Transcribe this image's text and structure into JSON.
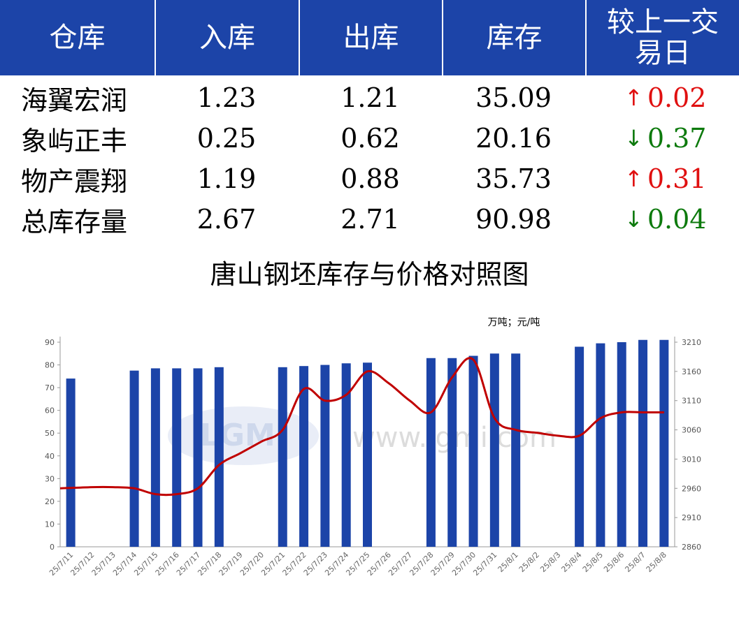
{
  "table": {
    "headers": [
      "仓库",
      "入库",
      "出库",
      "库存",
      "较上一交\n易日"
    ],
    "rows": [
      {
        "name": "海翼宏润",
        "in": "1.23",
        "out": "1.21",
        "stock": "35.09",
        "change": "0.02",
        "direction": "up"
      },
      {
        "name": "象屿正丰",
        "in": "0.25",
        "out": "0.62",
        "stock": "20.16",
        "change": "0.37",
        "direction": "down"
      },
      {
        "name": "物产震翔",
        "in": "1.19",
        "out": "0.88",
        "stock": "35.73",
        "change": "0.31",
        "direction": "up"
      },
      {
        "name": "总库存量",
        "in": "2.67",
        "out": "2.71",
        "stock": "90.98",
        "change": "0.04",
        "direction": "down"
      }
    ],
    "header_color": "#1c44a8",
    "up_color": "#e01010",
    "down_color": "#0d7a0d"
  },
  "watermark": {
    "logo": "LGMI",
    "url": "www.lgmi.com"
  },
  "chart_data": {
    "type": "bar",
    "title": "唐山钢坯库存与价格对照图",
    "unit_label": "万吨；元/吨",
    "categories": [
      "25/7/11",
      "25/7/12",
      "25/7/13",
      "25/7/14",
      "25/7/15",
      "25/7/16",
      "25/7/17",
      "25/7/18",
      "25/7/19",
      "25/7/20",
      "25/7/21",
      "25/7/22",
      "25/7/23",
      "25/7/24",
      "25/7/25",
      "25/7/26",
      "25/7/27",
      "25/7/28",
      "25/7/29",
      "25/7/30",
      "25/7/31",
      "25/8/1",
      "25/8/2",
      "25/8/3",
      "25/8/4",
      "25/8/5",
      "25/8/6",
      "25/8/7",
      "25/8/8"
    ],
    "series": [
      {
        "kind": "bar",
        "axis": "left",
        "color": "#1c44a8",
        "values": [
          74,
          null,
          null,
          77.5,
          78.5,
          78.5,
          78.5,
          79,
          null,
          null,
          79,
          79.5,
          80,
          80.7,
          81,
          null,
          null,
          83,
          83,
          84,
          85,
          85,
          null,
          null,
          88,
          89.5,
          90,
          91,
          91
        ]
      },
      {
        "kind": "line",
        "axis": "right",
        "color": "#c00000",
        "values": [
          2960,
          2962,
          2962,
          2960,
          2950,
          2950,
          2960,
          3000,
          3020,
          3040,
          3060,
          3130,
          3110,
          3120,
          3160,
          3140,
          3110,
          3090,
          3150,
          3180,
          3080,
          3060,
          3055,
          3050,
          3050,
          3080,
          3090,
          3090,
          3090
        ]
      }
    ],
    "ylim_left": [
      0,
      90
    ],
    "yticks_left": [
      0,
      10,
      20,
      30,
      40,
      50,
      60,
      70,
      80,
      90
    ],
    "ylim_right": [
      2860,
      3210
    ],
    "yticks_right": [
      2860,
      2910,
      2960,
      3010,
      3060,
      3110,
      3160,
      3210
    ]
  }
}
